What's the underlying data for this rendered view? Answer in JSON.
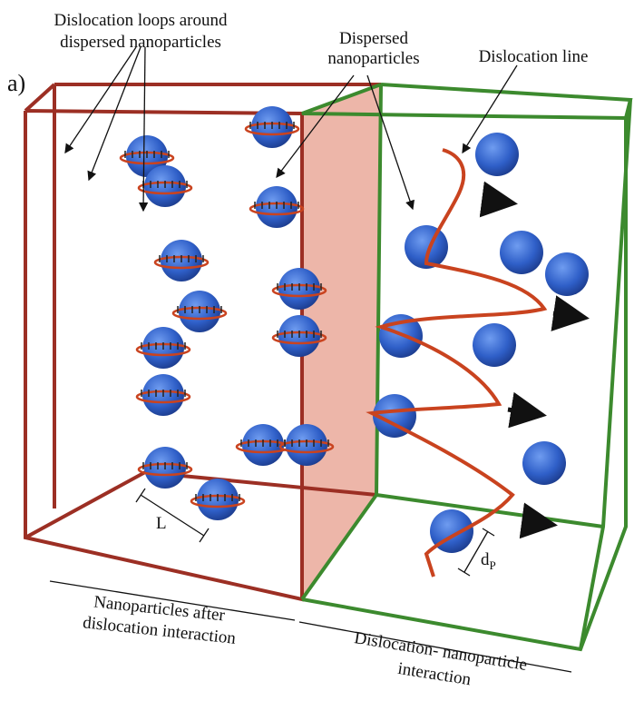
{
  "panel_label": "a)",
  "labels": {
    "loops": [
      "Dislocation loops around",
      "dispersed nanoparticles"
    ],
    "dispersed": [
      "Dispersed",
      "nanoparticles"
    ],
    "dislocation_line": "Dislocation line",
    "spacing": "L",
    "diameter": {
      "symbol": "d",
      "subscript": "P"
    },
    "after": [
      "Nanoparticles after",
      "dislocation interaction"
    ],
    "interaction": [
      "Dislocation- nanoparticle",
      "interaction"
    ]
  }
}
